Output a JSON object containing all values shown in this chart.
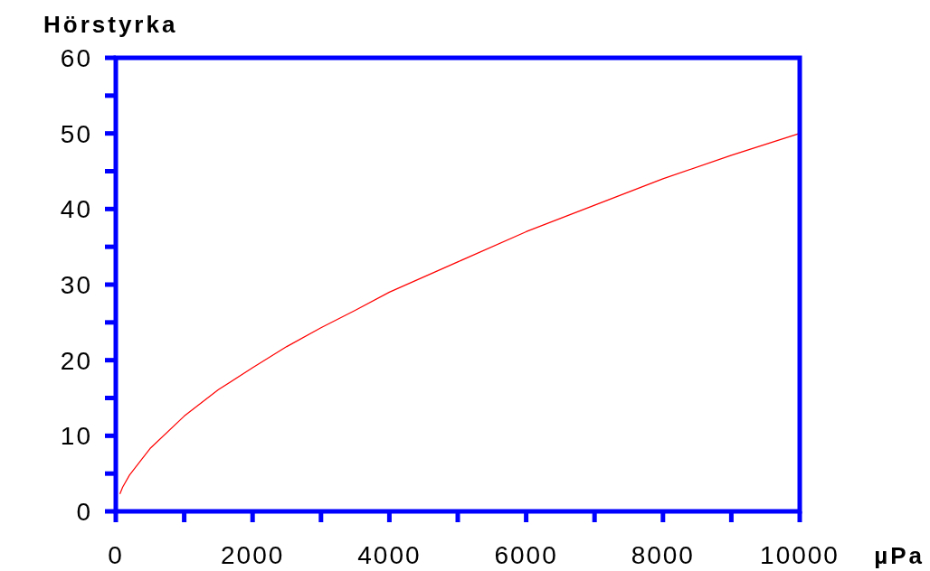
{
  "chart_data": {
    "type": "line",
    "title": "Hörstyrka",
    "xlabel": "µPa",
    "x": [
      60,
      100,
      200,
      500,
      1000,
      1500,
      2000,
      2500,
      3000,
      3500,
      4000,
      5000,
      6000,
      7000,
      8000,
      9000,
      10000
    ],
    "series": [
      {
        "color": "#ff0000",
        "values": [
          2.3,
          3.2,
          4.8,
          8.3,
          12.6,
          16.1,
          19,
          21.8,
          24.3,
          26.6,
          29,
          33,
          37,
          40.5,
          44,
          47.1,
          50
        ]
      }
    ],
    "xlim": [
      0,
      10000
    ],
    "ylim": [
      0,
      60
    ],
    "xticks": [
      0,
      {
        "value": 1000,
        "label": null
      },
      2000,
      {
        "value": 3000,
        "label": null
      },
      4000,
      {
        "value": 5000,
        "label": null
      },
      6000,
      {
        "value": 7000,
        "label": null
      },
      8000,
      {
        "value": 9000,
        "label": null
      },
      10000
    ],
    "yticks": [
      0,
      {
        "value": 5,
        "label": null
      },
      10,
      {
        "value": 15,
        "label": null
      },
      20,
      {
        "value": 25,
        "label": null
      },
      30,
      {
        "value": 35,
        "label": null
      },
      40,
      {
        "value": 45,
        "label": null
      },
      50,
      {
        "value": 55,
        "label": null
      },
      60
    ],
    "grid": false,
    "line_style": "solid"
  }
}
